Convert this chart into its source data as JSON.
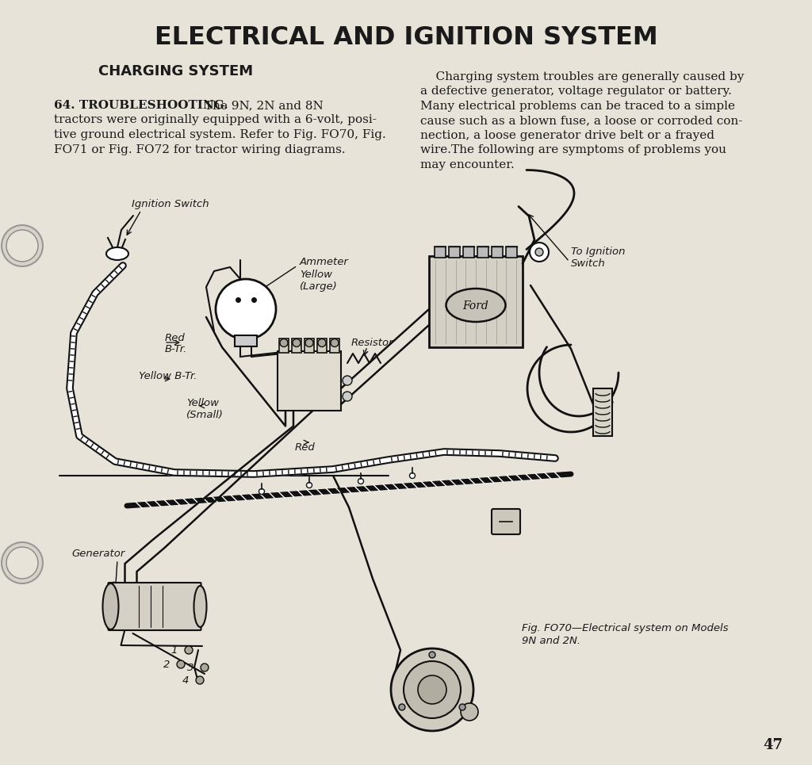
{
  "title": "ELECTRICAL AND IGNITION SYSTEM",
  "subtitle": "CHARGING SYSTEM",
  "bg_color": "#e8e3d8",
  "text_color": "#1a1a1a",
  "left_para_bold": "64. TROUBLESHOOTING.",
  "left_para_normal": " The 9N, 2N and 8N tractors were originally equipped with a 6-volt, posi-tive ground electrical system. Refer to Fig. FO70, Fig. FO71 or Fig. FO72 for tractor wiring diagrams.",
  "left_para_lines": [
    "tractors were originally equipped with a 6-volt, posi-",
    "tive ground electrical system. Refer to Fig. FO70, Fig.",
    "FO71 or Fig. FO72 for tractor wiring diagrams."
  ],
  "right_para_lines": [
    "    Charging system troubles are generally caused by",
    "a defective generator, voltage regulator or battery.",
    "Many electrical problems can be traced to a simple",
    "cause such as a blown fuse, a loose or corroded con-",
    "nection, a loose generator drive belt or a frayed",
    "wire.The following are symptoms of problems you",
    "may encounter."
  ],
  "fig_caption_line1": "Fig. FO70—Electrical system on Models",
  "fig_caption_line2": "9N and 2N.",
  "page_number": "47",
  "label_ignition_switch": "Ignition Switch",
  "label_ammeter": "Ammeter",
  "label_yellow_large": "Yellow",
  "label_large_paren": "(Large)",
  "label_resistor": "Resistor",
  "label_red_btr": "Red",
  "label_red_btr2": "B-Tr.",
  "label_yellow_btr": "Yellow B-Tr.",
  "label_yellow_small": "Yellow",
  "label_small_paren": "(Small)",
  "label_red": "Red",
  "label_generator": "Generator",
  "label_to_ignition": "To Ignition",
  "label_switch": "Switch"
}
